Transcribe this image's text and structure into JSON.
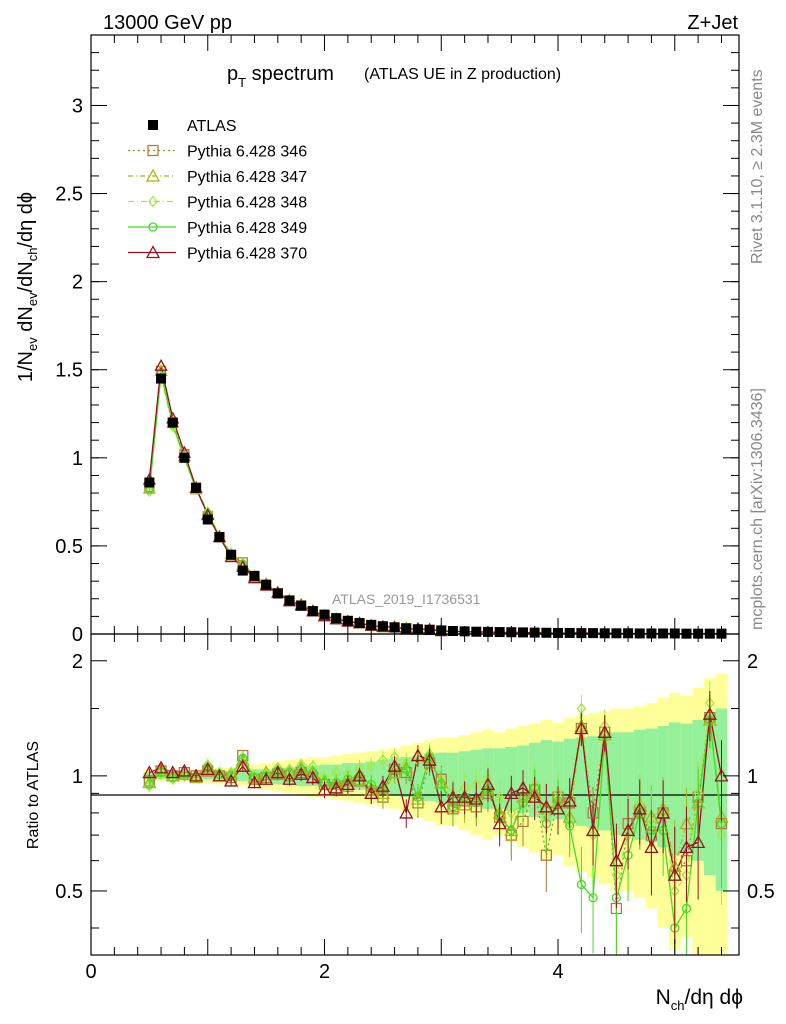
{
  "header": {
    "left": "13000 GeV pp",
    "right": "Z+Jet"
  },
  "side_text": {
    "top": "Rivet 3.1.10, ≥ 2.3M events",
    "bottom": "mcplots.cern.ch [arXiv:1306.3436]"
  },
  "chart_data": [
    {
      "type": "line",
      "panel": "main",
      "title_main": "p",
      "title_sub": "T",
      "title_rest": " spectrum",
      "title_paren": "(ATLAS UE in Z production)",
      "watermark": "ATLAS_2019_I1736531",
      "ylabel": "1/N_ev dN_ev/dN_ch/dη dϕ",
      "ylabel_parts": {
        "a": "1/N",
        "a_sub": "ev",
        "b": " dN",
        "b_sub": "ev",
        "c": "/dN",
        "c_sub": "ch",
        "d": "/dη dϕ"
      },
      "xlim": [
        0,
        5.55
      ],
      "ylim": [
        0,
        3.4
      ],
      "yticks": [
        "0",
        "0.5",
        "1",
        "1.5",
        "2",
        "2.5",
        "3"
      ],
      "ytick_values": [
        0,
        0.5,
        1,
        1.5,
        2,
        2.5,
        3
      ],
      "x": [
        0.5,
        0.6,
        0.7,
        0.8,
        0.9,
        1.0,
        1.1,
        1.2,
        1.3,
        1.4,
        1.5,
        1.6,
        1.7,
        1.8,
        1.9,
        2.0,
        2.1,
        2.2,
        2.3,
        2.4,
        2.5,
        2.6,
        2.7,
        2.8,
        2.9,
        3.0,
        3.1,
        3.2,
        3.3,
        3.4,
        3.5,
        3.6,
        3.7,
        3.8,
        3.9,
        4.0,
        4.1,
        4.2,
        4.3,
        4.4,
        4.5,
        4.6,
        4.7,
        4.8,
        4.9,
        5.0,
        5.1,
        5.2,
        5.3,
        5.4
      ],
      "atlas": [
        0.86,
        1.45,
        1.2,
        1.0,
        0.83,
        0.65,
        0.55,
        0.45,
        0.36,
        0.33,
        0.28,
        0.23,
        0.19,
        0.16,
        0.13,
        0.11,
        0.09,
        0.075,
        0.062,
        0.052,
        0.044,
        0.037,
        0.032,
        0.027,
        0.023,
        0.02,
        0.017,
        0.015,
        0.013,
        0.012,
        0.011,
        0.01,
        0.009,
        0.008,
        0.007,
        0.006,
        0.006,
        0.005,
        0.005,
        0.004,
        0.004,
        0.004,
        0.003,
        0.003,
        0.003,
        0.003,
        0.002,
        0.002,
        0.002,
        0.002
      ],
      "legend": [
        {
          "label": "ATLAS"
        },
        {
          "label": "Pythia 6.428 346"
        },
        {
          "label": "Pythia 6.428 347"
        },
        {
          "label": "Pythia 6.428 348"
        },
        {
          "label": "Pythia 6.428 349"
        },
        {
          "label": "Pythia 6.428 370"
        }
      ]
    },
    {
      "type": "line",
      "panel": "ratio",
      "ylabel": "Ratio to ATLAS",
      "xlabel": "N_ch/dη dϕ",
      "xlabel_parts": {
        "a": "N",
        "a_sub": "ch",
        "b": "/dη dϕ"
      },
      "xlim": [
        0,
        5.55
      ],
      "ylim": [
        0.34,
        2.35
      ],
      "xticks": [
        "0",
        "2",
        "4"
      ],
      "xtick_values": [
        0,
        2,
        4
      ],
      "yticks": [
        "0.5",
        "1",
        "2"
      ],
      "ytick_values": [
        0.5,
        1,
        2
      ],
      "band_yellow": [
        0.04,
        0.03,
        0.03,
        0.03,
        0.04,
        0.04,
        0.05,
        0.05,
        0.06,
        0.07,
        0.08,
        0.09,
        0.1,
        0.11,
        0.12,
        0.12,
        0.13,
        0.14,
        0.15,
        0.16,
        0.17,
        0.18,
        0.2,
        0.22,
        0.24,
        0.26,
        0.26,
        0.28,
        0.3,
        0.32,
        0.3,
        0.33,
        0.35,
        0.37,
        0.4,
        0.38,
        0.42,
        0.44,
        0.46,
        0.48,
        0.5,
        0.5,
        0.52,
        0.55,
        0.6,
        0.65,
        0.62,
        0.7,
        0.8,
        0.85
      ],
      "band_green": [
        0.02,
        0.02,
        0.02,
        0.02,
        0.02,
        0.02,
        0.03,
        0.03,
        0.03,
        0.04,
        0.04,
        0.05,
        0.05,
        0.06,
        0.06,
        0.07,
        0.07,
        0.08,
        0.08,
        0.09,
        0.1,
        0.11,
        0.12,
        0.13,
        0.14,
        0.15,
        0.15,
        0.16,
        0.17,
        0.18,
        0.18,
        0.19,
        0.2,
        0.22,
        0.24,
        0.23,
        0.25,
        0.26,
        0.27,
        0.28,
        0.3,
        0.3,
        0.32,
        0.33,
        0.35,
        0.38,
        0.37,
        0.4,
        0.45,
        0.5
      ],
      "series": [
        {
          "name": "Pythia 6.428 346",
          "color": "#b07c3c",
          "marker": "square",
          "dash": "2,3",
          "values": [
            0.97,
            1.03,
            1.0,
            1.02,
            1.0,
            1.03,
            1.0,
            0.99,
            1.13,
            0.98,
            0.99,
            1.01,
            1.0,
            1.02,
            0.99,
            0.95,
            0.93,
            0.94,
            0.97,
            0.9,
            0.88,
            1.04,
            1.02,
            0.85,
            1.08,
            0.98,
            0.82,
            0.86,
            0.83,
            0.9,
            0.78,
            0.7,
            0.76,
            0.92,
            0.62,
            0.88,
            0.85,
            1.33,
            0.8,
            1.3,
            0.45,
            0.75,
            0.8,
            0.7,
            0.8,
            0.55,
            0.6,
            0.88,
            1.42,
            0.75
          ]
        },
        {
          "name": "Pythia 6.428 347",
          "color": "#a8b41e",
          "marker": "triangle",
          "dash": "5,3,1,3",
          "values": [
            0.96,
            1.03,
            1.0,
            1.01,
            0.99,
            1.05,
            1.0,
            1.01,
            1.1,
            0.99,
            1.02,
            1.03,
            1.02,
            1.05,
            1.02,
            0.97,
            0.95,
            0.97,
            0.98,
            0.92,
            0.9,
            1.02,
            1.05,
            0.87,
            1.12,
            0.96,
            0.83,
            0.84,
            0.86,
            0.92,
            0.8,
            0.72,
            0.88,
            0.9,
            0.82,
            0.85,
            0.78,
            1.35,
            0.72,
            1.28,
            0.6,
            0.72,
            0.85,
            0.78,
            0.82,
            0.58,
            0.75,
            0.85,
            1.4,
            0.78
          ]
        },
        {
          "name": "Pythia 6.428 348",
          "color": "#a4e84a",
          "marker": "diamond",
          "dash": "6,3,1,3",
          "values": [
            0.94,
            1.01,
            0.98,
            1.0,
            1.0,
            1.07,
            1.02,
            1.02,
            1.12,
            1.0,
            1.01,
            1.05,
            1.04,
            1.07,
            1.06,
            0.99,
            1.02,
            1.01,
            1.05,
            1.06,
            1.1,
            1.12,
            1.08,
            1.1,
            1.14,
            0.97,
            0.9,
            0.93,
            0.95,
            0.98,
            0.88,
            0.8,
            0.85,
            0.95,
            0.78,
            0.9,
            0.75,
            1.5,
            0.7,
            1.35,
            0.55,
            0.7,
            0.85,
            0.75,
            0.8,
            0.5,
            0.55,
            0.9,
            1.55,
            0.7
          ]
        },
        {
          "name": "Pythia 6.428 349",
          "color": "#44dd22",
          "marker": "circle",
          "dash": "",
          "values": [
            0.95,
            1.02,
            0.99,
            1.0,
            0.99,
            1.05,
            1.01,
            1.0,
            1.11,
            0.99,
            1.0,
            1.03,
            1.02,
            1.04,
            1.02,
            0.96,
            0.96,
            0.98,
            1.0,
            0.95,
            0.92,
            1.04,
            1.04,
            0.88,
            1.12,
            0.95,
            0.83,
            0.88,
            0.85,
            0.92,
            0.78,
            0.72,
            0.85,
            0.93,
            0.75,
            0.86,
            0.74,
            0.52,
            0.48,
            1.28,
            0.48,
            0.62,
            0.8,
            0.72,
            0.72,
            0.4,
            0.45,
            0.85,
            1.4,
            0.75
          ]
        },
        {
          "name": "Pythia 6.428 370",
          "color": "#9a1020",
          "marker": "triangle",
          "dash": "",
          "values": [
            1.02,
            1.05,
            1.02,
            1.03,
            1.0,
            1.04,
            1.0,
            0.97,
            1.06,
            0.96,
            0.98,
            1.02,
            0.98,
            1.01,
            0.99,
            0.92,
            0.93,
            0.95,
            1.0,
            0.9,
            0.94,
            1.06,
            0.8,
            1.13,
            1.1,
            0.83,
            0.88,
            0.88,
            0.87,
            0.95,
            0.75,
            0.9,
            0.93,
            0.88,
            0.83,
            0.82,
            0.86,
            1.33,
            0.72,
            1.3,
            0.6,
            0.72,
            0.82,
            0.65,
            0.8,
            0.55,
            0.65,
            0.67,
            1.45,
            1.0
          ]
        }
      ]
    }
  ]
}
